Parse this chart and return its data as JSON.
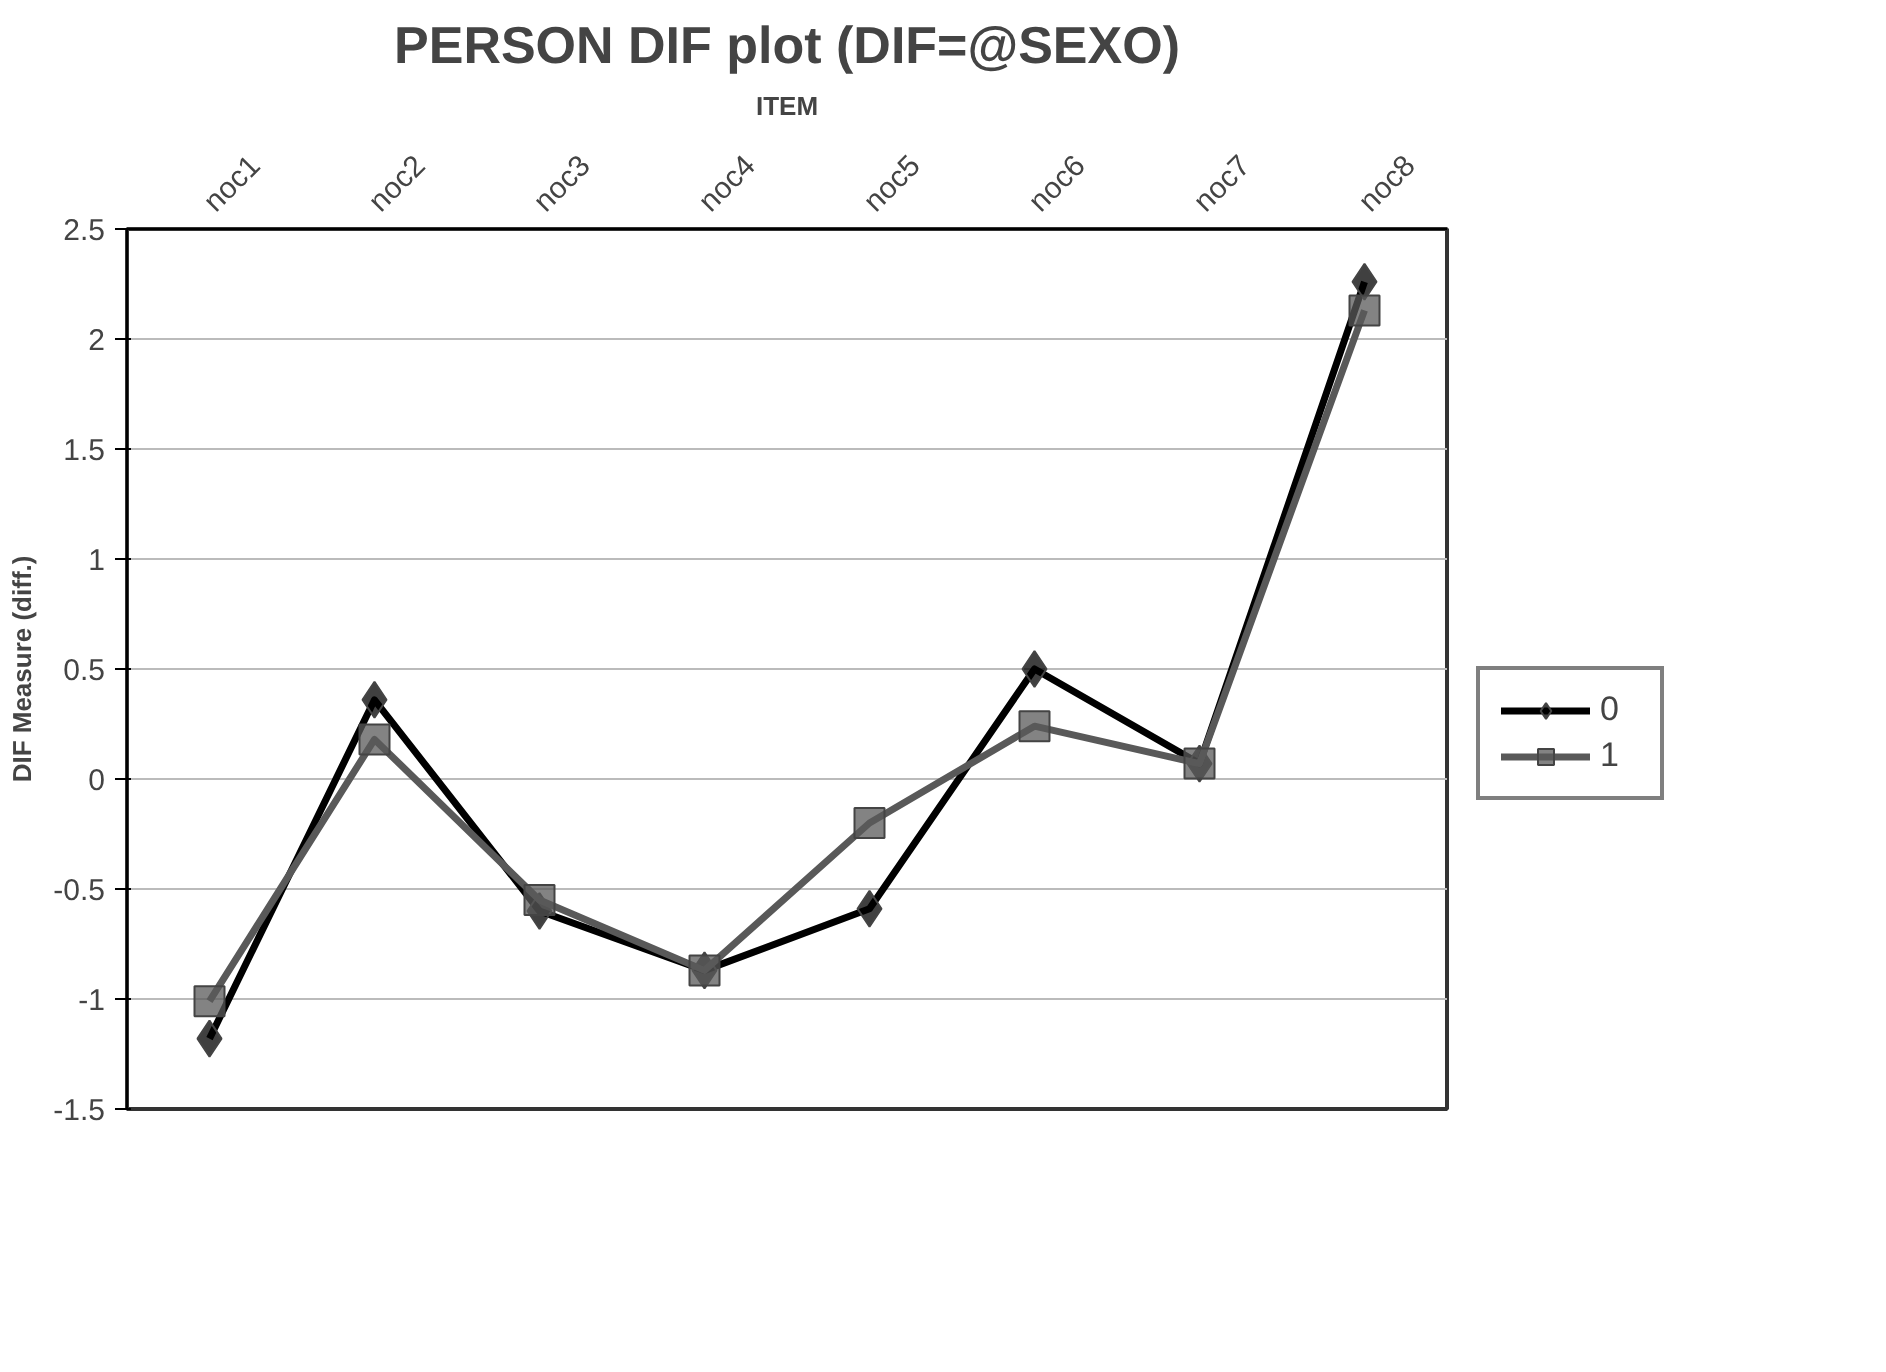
{
  "chart_data": {
    "type": "line",
    "title": "PERSON DIF plot (DIF=@SEXO)",
    "xlabel": "ITEM",
    "ylabel": "DIF Measure (diff.)",
    "categories": [
      "noc1",
      "noc2",
      "noc3",
      "noc4",
      "noc5",
      "noc6",
      "noc7",
      "noc8"
    ],
    "series": [
      {
        "name": "0",
        "color": "#000000",
        "marker": "diamond",
        "values": [
          -1.18,
          0.36,
          -0.6,
          -0.87,
          -0.59,
          0.5,
          0.07,
          2.26
        ]
      },
      {
        "name": "1",
        "color": "#595959",
        "marker": "square",
        "values": [
          -1.01,
          0.18,
          -0.55,
          -0.87,
          -0.2,
          0.24,
          0.07,
          2.13
        ]
      }
    ],
    "ylim": [
      -1.5,
      2.5
    ],
    "yticks": [
      -1.5,
      -1,
      -0.5,
      0,
      0.5,
      1,
      1.5,
      2,
      2.5
    ],
    "grid": "y",
    "legend": "right"
  }
}
